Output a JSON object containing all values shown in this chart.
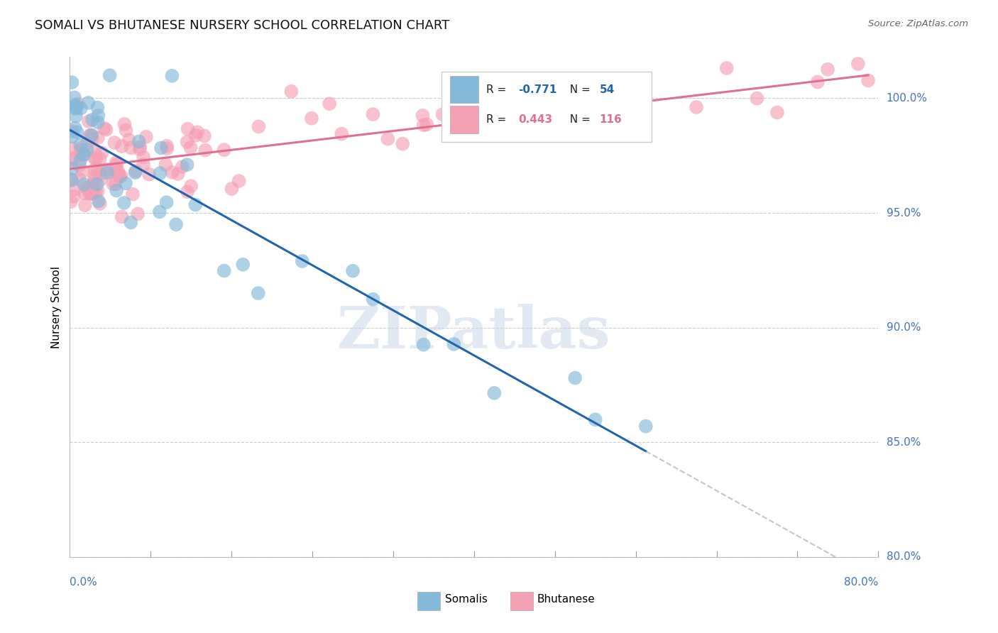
{
  "title": "SOMALI VS BHUTANESE NURSERY SCHOOL CORRELATION CHART",
  "source": "Source: ZipAtlas.com",
  "ylabel": "Nursery School",
  "y_ticks": [
    80.0,
    85.0,
    90.0,
    95.0,
    100.0
  ],
  "x_range": [
    0.0,
    80.0
  ],
  "y_range": [
    80.0,
    101.8
  ],
  "somali_color": "#85b9d9",
  "bhutanese_color": "#f4a0b5",
  "somali_trend_color": "#2166ac",
  "bhutanese_trend_color": "#e07090",
  "R_somali": -0.771,
  "N_somali": 54,
  "R_bhutanese": 0.443,
  "N_bhutanese": 116,
  "watermark": "ZIPatlas",
  "legend_somali": "Somalis",
  "legend_bhutanese": "Bhutanese"
}
